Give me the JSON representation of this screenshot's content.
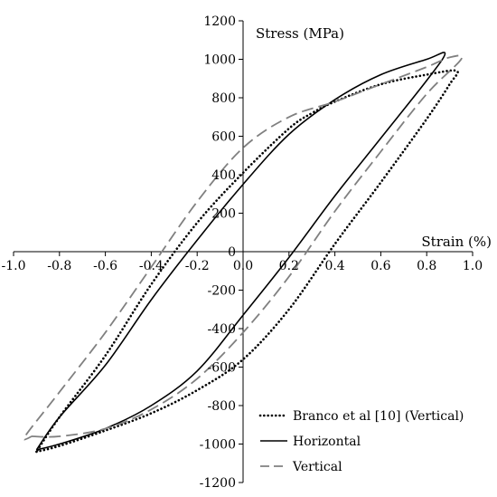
{
  "chart_data": {
    "type": "line",
    "title": "",
    "xlabel": "Strain (%)",
    "ylabel": "Stress (MPa)",
    "xlim": [
      -1.0,
      1.0
    ],
    "ylim": [
      -1200,
      1200
    ],
    "x_ticks": [
      -1.0,
      -0.8,
      -0.6,
      -0.4,
      -0.2,
      0.0,
      0.2,
      0.4,
      0.6,
      0.8,
      1.0
    ],
    "x_tick_labels": [
      "-1.0",
      "-0.8",
      "-0.6",
      "-0.4",
      "-0.2",
      "0.0",
      "0.2",
      "0.4",
      "0.6",
      "0.8",
      "1.0"
    ],
    "y_ticks": [
      -1200,
      -1000,
      -800,
      -600,
      -400,
      -200,
      0,
      200,
      400,
      600,
      800,
      1000,
      1200
    ],
    "y_tick_labels": [
      "-1200",
      "-1000",
      "-800",
      "-600",
      "-400",
      "-200",
      "0",
      "200",
      "400",
      "600",
      "800",
      "1000",
      "1200"
    ],
    "grid": false,
    "legend_position": "bottom-right",
    "series": [
      {
        "name": "Branco et al [10] (Vertical)",
        "style": "dotted",
        "color": "#000000",
        "x": [
          -0.9,
          -0.8,
          -0.6,
          -0.4,
          -0.2,
          0.0,
          0.2,
          0.4,
          0.6,
          0.8,
          0.9,
          0.93,
          0.8,
          0.6,
          0.4,
          0.3,
          0.2,
          0.0,
          -0.2,
          -0.4,
          -0.6,
          -0.8,
          -0.9
        ],
        "y": [
          -1040,
          -1010,
          -930,
          -840,
          -720,
          -560,
          -300,
          40,
          360,
          690,
          870,
          940,
          920,
          870,
          780,
          720,
          640,
          410,
          150,
          -170,
          -540,
          -860,
          -1040
        ]
      },
      {
        "name": "Horizontal",
        "style": "solid",
        "color": "#000000",
        "x": [
          -0.9,
          -0.8,
          -0.6,
          -0.4,
          -0.2,
          0.0,
          0.2,
          0.4,
          0.6,
          0.8,
          0.88,
          0.8,
          0.6,
          0.4,
          0.2,
          0.0,
          -0.2,
          -0.4,
          -0.6,
          -0.8,
          -0.9
        ],
        "y": [
          -1030,
          -1000,
          -920,
          -800,
          -620,
          -330,
          -30,
          290,
          590,
          890,
          1030,
          1000,
          920,
          790,
          610,
          350,
          60,
          -250,
          -590,
          -860,
          -1030
        ]
      },
      {
        "name": "Vertical",
        "style": "dashed",
        "color": "#808080",
        "x": [
          -0.92,
          -0.8,
          -0.6,
          -0.4,
          -0.2,
          0.0,
          0.2,
          0.4,
          0.6,
          0.8,
          0.95,
          0.9,
          0.8,
          0.6,
          0.4,
          0.2,
          0.0,
          -0.2,
          -0.4,
          -0.6,
          -0.8,
          -0.95,
          -0.92
        ],
        "y": [
          -960,
          -960,
          -920,
          -820,
          -660,
          -420,
          -130,
          210,
          520,
          820,
          1000,
          1010,
          960,
          870,
          780,
          700,
          540,
          260,
          -80,
          -420,
          -730,
          -960,
          -960
        ]
      }
    ]
  }
}
